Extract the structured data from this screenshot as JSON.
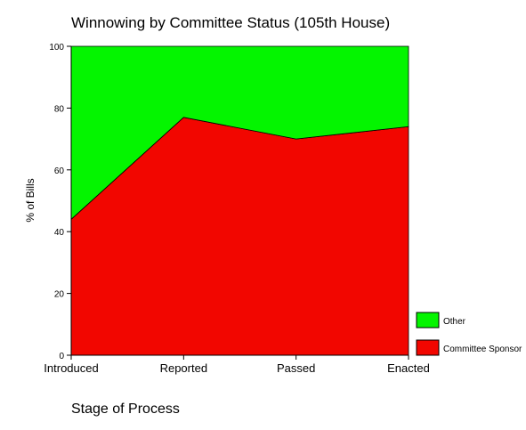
{
  "chart_data": {
    "type": "area",
    "stacked": true,
    "percent": true,
    "title": "Winnowing by Committee Status (105th House)",
    "xlabel": "Stage of Process",
    "ylabel": "% of Bills",
    "categories": [
      "Introduced",
      "Reported",
      "Passed",
      "Enacted"
    ],
    "ylim": [
      0,
      100
    ],
    "yticks": [
      0,
      20,
      40,
      60,
      80,
      100
    ],
    "grid": false,
    "legend_position": "bottom-right",
    "series": [
      {
        "name": "Committee Sponsor",
        "values": [
          44,
          77,
          70,
          74
        ],
        "color": "#f20600"
      },
      {
        "name": "Other",
        "values": [
          56,
          23,
          30,
          26
        ],
        "color": "#04f500"
      }
    ]
  }
}
